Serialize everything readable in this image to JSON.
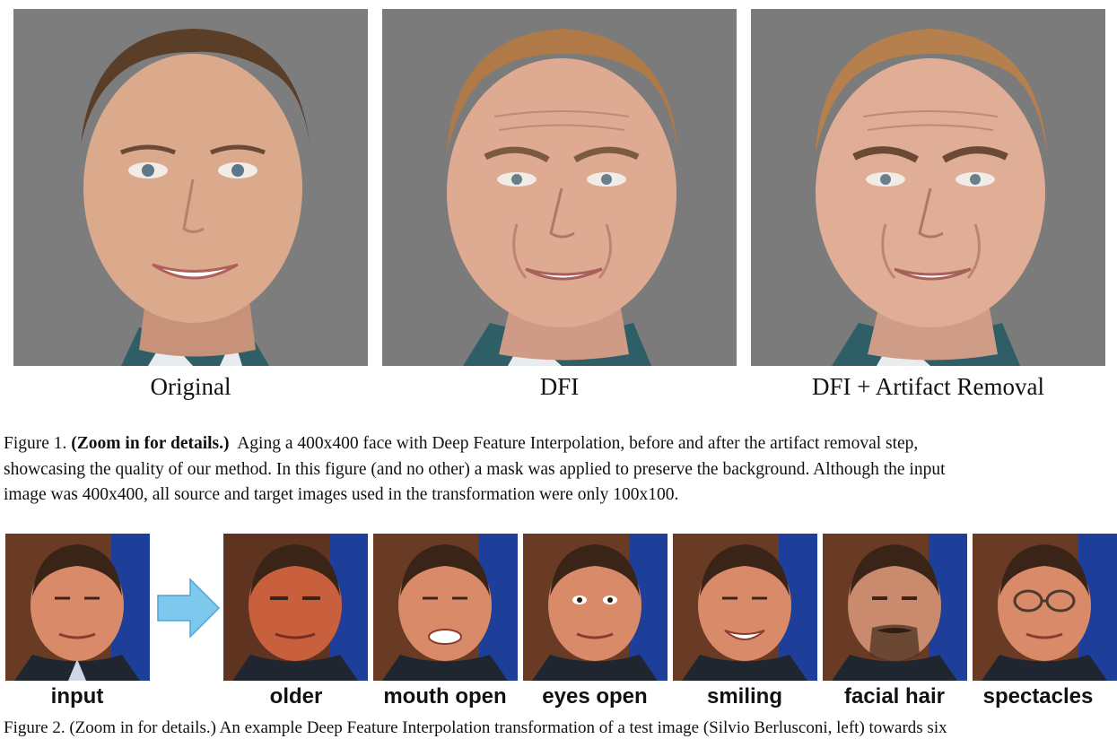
{
  "figure1": {
    "panels": [
      {
        "label": "Original"
      },
      {
        "label": "DFI"
      },
      {
        "label": "DFI + Artifact Removal"
      }
    ],
    "caption": {
      "prefix": "Figure 1. ",
      "bold": "(Zoom in for details.)",
      "line1": "  Aging a 400x400 face with Deep Feature Interpolation, before and after the artifact removal step,",
      "line2": "showcasing the quality of our method. In this figure (and no other) a mask was applied to preserve the background. Although the input",
      "line3": "image was 400x400, all source and target images used in the transformation were only 100x100."
    }
  },
  "figure2": {
    "input_label": "input",
    "arrow_icon": "right-arrow-icon",
    "outputs": [
      {
        "label": "older"
      },
      {
        "label": "mouth open"
      },
      {
        "label": "eyes open"
      },
      {
        "label": "smiling"
      },
      {
        "label": "facial hair"
      },
      {
        "label": "spectacles"
      }
    ],
    "caption_partial": "Figure 2. (Zoom in for details.) An example Deep Feature Interpolation transformation of a test image (Silvio Berlusconi, left) towards six"
  },
  "colors": {
    "background_gray": "#7b7b7b",
    "skin": "#d9a88a",
    "flag_blue": "#1d3f9a",
    "arrow_blue": "#7ec8ee"
  }
}
